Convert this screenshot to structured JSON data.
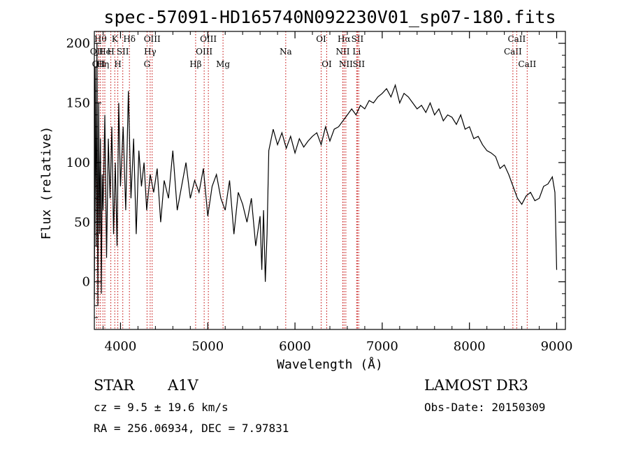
{
  "chart_data": {
    "type": "line",
    "title": "spec-57091-HD165740N092230V01_sp07-180.fits",
    "xlabel": "Wavelength (Å)",
    "ylabel": "Flux (relative)",
    "xlim": [
      3700,
      9100
    ],
    "ylim": [
      -40,
      210
    ],
    "x_ticks": [
      4000,
      5000,
      6000,
      7000,
      8000,
      9000
    ],
    "y_ticks": [
      0,
      50,
      100,
      150,
      200
    ],
    "grid": false,
    "series": [
      {
        "x": [
          3700,
          3710,
          3720,
          3730,
          3740,
          3750,
          3760,
          3770,
          3780,
          3790,
          3800,
          3820,
          3840,
          3860,
          3880,
          3900,
          3920,
          3940,
          3960,
          3980,
          4000,
          4030,
          4060,
          4090,
          4120,
          4150,
          4180,
          4210,
          4240,
          4270,
          4300,
          4340,
          4380,
          4420,
          4460,
          4500,
          4550,
          4600,
          4650,
          4700,
          4750,
          4800,
          4850,
          4900,
          4950,
          5000,
          5050,
          5100,
          5150,
          5200,
          5250,
          5300,
          5350,
          5400,
          5450,
          5500,
          5550,
          5600,
          5620,
          5640,
          5660,
          5680,
          5700,
          5750,
          5800,
          5850,
          5900,
          5950,
          6000,
          6050,
          6100,
          6150,
          6200,
          6250,
          6300,
          6350,
          6400,
          6450,
          6500,
          6550,
          6600,
          6650,
          6700,
          6750,
          6800,
          6850,
          6900,
          6950,
          7000,
          7050,
          7100,
          7150,
          7200,
          7250,
          7300,
          7350,
          7400,
          7450,
          7500,
          7550,
          7600,
          7650,
          7700,
          7750,
          7800,
          7850,
          7900,
          7950,
          8000,
          8050,
          8100,
          8150,
          8200,
          8250,
          8300,
          8350,
          8400,
          8450,
          8500,
          8550,
          8600,
          8650,
          8700,
          8750,
          8800,
          8850,
          8900,
          8950,
          8980,
          9000
        ],
        "y": [
          -15,
          180,
          30,
          200,
          -20,
          150,
          40,
          120,
          -10,
          90,
          60,
          140,
          20,
          120,
          70,
          130,
          40,
          100,
          30,
          150,
          80,
          130,
          60,
          160,
          70,
          120,
          40,
          110,
          80,
          100,
          60,
          90,
          75,
          95,
          50,
          85,
          70,
          110,
          60,
          80,
          100,
          70,
          85,
          75,
          95,
          55,
          80,
          90,
          70,
          60,
          85,
          40,
          75,
          65,
          50,
          70,
          30,
          55,
          10,
          60,
          0,
          40,
          110,
          128,
          115,
          125,
          112,
          122,
          108,
          120,
          113,
          118,
          122,
          125,
          115,
          130,
          118,
          128,
          130,
          135,
          140,
          145,
          140,
          148,
          145,
          152,
          150,
          155,
          158,
          162,
          155,
          165,
          150,
          158,
          155,
          150,
          145,
          148,
          142,
          150,
          140,
          145,
          135,
          140,
          138,
          132,
          140,
          128,
          130,
          120,
          122,
          115,
          110,
          108,
          105,
          95,
          98,
          90,
          80,
          70,
          65,
          72,
          75,
          68,
          70,
          80,
          82,
          88,
          75,
          10
        ],
        "color": "#000000"
      }
    ],
    "lines": [
      {
        "wl": 3727,
        "labels": [
          "OII"
        ],
        "rows": [
          1
        ]
      },
      {
        "wl": 3750,
        "labels": [
          "OII"
        ],
        "rows": [
          2
        ]
      },
      {
        "wl": 3770,
        "labels": [
          "Hθ"
        ],
        "rows": [
          0
        ]
      },
      {
        "wl": 3798,
        "labels": [
          "Hη"
        ],
        "rows": [
          2
        ]
      },
      {
        "wl": 3820,
        "labels": [
          "He"
        ],
        "rows": [
          1
        ]
      },
      {
        "wl": 3889,
        "labels": [
          "H"
        ],
        "rows": [
          1
        ]
      },
      {
        "wl": 3934,
        "labels": [
          "K"
        ],
        "rows": [
          0
        ]
      },
      {
        "wl": 3969,
        "labels": [
          "H"
        ],
        "rows": [
          2
        ]
      },
      {
        "wl": 4026,
        "labels": [
          "SII"
        ],
        "rows": [
          1
        ]
      },
      {
        "wl": 4102,
        "labels": [
          "Hδ"
        ],
        "rows": [
          0
        ]
      },
      {
        "wl": 4304,
        "labels": [
          "G"
        ],
        "rows": [
          2
        ]
      },
      {
        "wl": 4340,
        "labels": [
          "Hγ"
        ],
        "rows": [
          1
        ]
      },
      {
        "wl": 4363,
        "labels": [
          "OIII"
        ],
        "rows": [
          0
        ]
      },
      {
        "wl": 4861,
        "labels": [
          "Hβ"
        ],
        "rows": [
          2
        ]
      },
      {
        "wl": 4959,
        "labels": [
          "OIII"
        ],
        "rows": [
          1
        ]
      },
      {
        "wl": 5007,
        "labels": [
          "OIII"
        ],
        "rows": [
          0
        ]
      },
      {
        "wl": 5175,
        "labels": [
          "Mg"
        ],
        "rows": [
          2
        ]
      },
      {
        "wl": 5894,
        "labels": [
          "Na"
        ],
        "rows": [
          1
        ]
      },
      {
        "wl": 6300,
        "labels": [
          "OI"
        ],
        "rows": [
          0
        ]
      },
      {
        "wl": 6364,
        "labels": [
          "OI"
        ],
        "rows": [
          2
        ]
      },
      {
        "wl": 6548,
        "labels": [
          "NII"
        ],
        "rows": [
          1
        ]
      },
      {
        "wl": 6563,
        "labels": [
          "Hα"
        ],
        "rows": [
          0
        ]
      },
      {
        "wl": 6583,
        "labels": [
          "NII"
        ],
        "rows": [
          2
        ]
      },
      {
        "wl": 6707,
        "labels": [
          "Li"
        ],
        "rows": [
          1
        ]
      },
      {
        "wl": 6716,
        "labels": [
          "SII"
        ],
        "rows": [
          0
        ]
      },
      {
        "wl": 6731,
        "labels": [
          "SII"
        ],
        "rows": [
          2
        ]
      },
      {
        "wl": 8498,
        "labels": [
          "CaII"
        ],
        "rows": [
          1
        ]
      },
      {
        "wl": 8542,
        "labels": [
          "CaII"
        ],
        "rows": [
          0
        ]
      },
      {
        "wl": 8662,
        "labels": [
          "CaII"
        ],
        "rows": [
          2
        ]
      }
    ]
  },
  "info": {
    "class_label": "STAR",
    "subclass": "A1V",
    "survey": "LAMOST DR3",
    "cz": "cz = 9.5 ± 19.6 km/s",
    "obs_date": "Obs-Date: 20150309",
    "radec": "RA = 256.06934, DEC =   7.97831"
  }
}
